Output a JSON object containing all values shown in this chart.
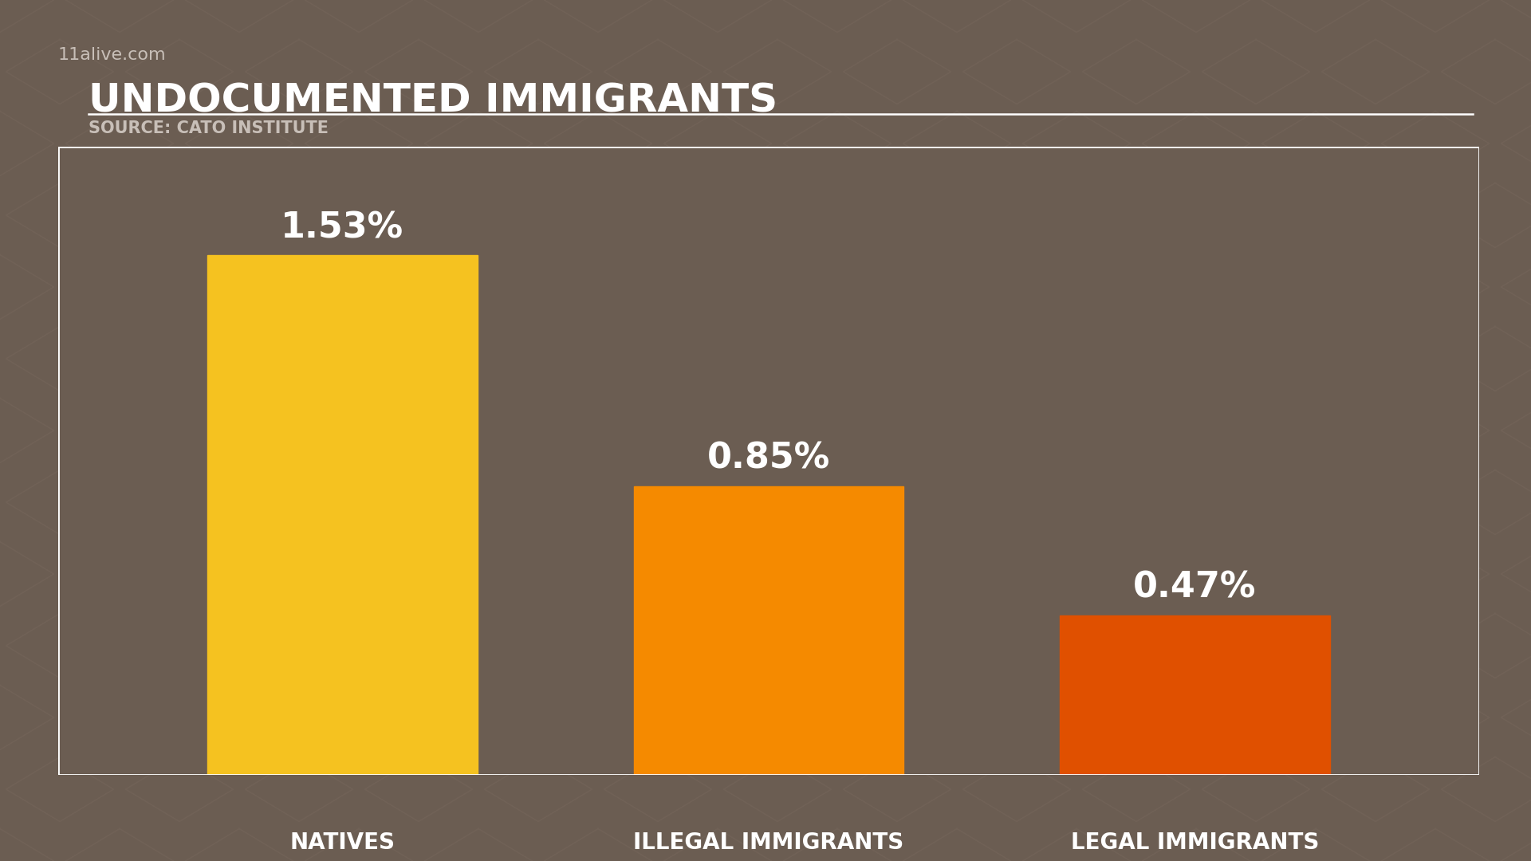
{
  "title": "UNDOCUMENTED IMMIGRANTS",
  "source": "SOURCE: CATO INSTITUTE",
  "watermark": "11alive.com",
  "categories": [
    "NATIVES",
    "ILLEGAL IMMIGRANTS",
    "LEGAL IMMIGRANTS"
  ],
  "values": [
    1.53,
    0.85,
    0.47
  ],
  "labels": [
    "1.53%",
    "0.85%",
    "0.47%"
  ],
  "bar_colors": [
    "#F5C220",
    "#F58A00",
    "#E05000"
  ],
  "background_color": "#6B5D52",
  "text_color": "#FFFFFF",
  "source_color": "#C8BFB8",
  "watermark_color": "#C8BFB8",
  "title_fontsize": 36,
  "source_fontsize": 15,
  "label_fontsize": 32,
  "category_fontsize": 20,
  "watermark_fontsize": 16,
  "ylim": [
    0,
    1.85
  ],
  "diamond_color": "#7A6B60",
  "diamond_alpha": 0.35,
  "border_color": "#FFFFFF",
  "border_linewidth": 2.0
}
